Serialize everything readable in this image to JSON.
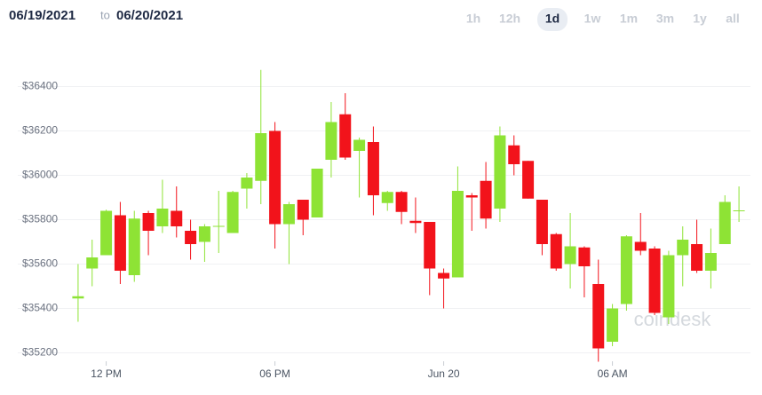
{
  "header": {
    "from": "06/19/2021",
    "to_word": "to",
    "to": "06/20/2021",
    "ranges": [
      "1h",
      "12h",
      "1d",
      "1w",
      "1m",
      "3m",
      "1y",
      "all"
    ],
    "selected_range": 2
  },
  "chart_data": {
    "type": "candlestick",
    "watermark": "coindesk",
    "categories": [
      null,
      null,
      "12 PM",
      null,
      null,
      null,
      null,
      null,
      null,
      null,
      null,
      null,
      null,
      null,
      "06 PM",
      null,
      null,
      null,
      null,
      null,
      null,
      null,
      null,
      null,
      null,
      null,
      "Jun 20",
      null,
      null,
      null,
      null,
      null,
      null,
      null,
      null,
      null,
      null,
      null,
      "06 AM",
      null,
      null,
      null,
      null,
      null,
      null,
      null,
      null,
      null
    ],
    "open": [
      35445,
      35580,
      35640,
      35820,
      35550,
      35830,
      35770,
      35840,
      35750,
      35700,
      35770,
      35740,
      35940,
      35975,
      36200,
      35780,
      35890,
      35810,
      36070,
      36275,
      36110,
      36150,
      35875,
      35925,
      35795,
      35790,
      35560,
      35540,
      35910,
      35975,
      35850,
      36135,
      36065,
      35890,
      35735,
      35600,
      35675,
      35510,
      35250,
      35420,
      35700,
      35670,
      35360,
      35640,
      35690,
      35570,
      35690,
      35840
    ],
    "high": [
      35600,
      35710,
      35845,
      35880,
      35840,
      35840,
      35980,
      35950,
      35800,
      35780,
      35930,
      35930,
      36010,
      36475,
      36240,
      35880,
      35890,
      36030,
      36330,
      36370,
      36170,
      36220,
      35930,
      35930,
      35900,
      35790,
      35580,
      36040,
      35920,
      36060,
      36220,
      36180,
      36065,
      35890,
      35740,
      35830,
      35680,
      35620,
      35420,
      35730,
      35830,
      35680,
      35660,
      35770,
      35800,
      35760,
      35910,
      35950
    ],
    "low": [
      35340,
      35500,
      35640,
      35510,
      35520,
      35640,
      35740,
      35720,
      35620,
      35610,
      35650,
      35740,
      35850,
      35870,
      35670,
      35600,
      35730,
      35810,
      35990,
      36070,
      35900,
      35820,
      35840,
      35780,
      35740,
      35460,
      35400,
      35540,
      35750,
      35760,
      35790,
      36000,
      35895,
      35640,
      35570,
      35490,
      35450,
      35160,
      35230,
      35390,
      35640,
      35370,
      35330,
      35500,
      35560,
      35490,
      35690,
      35790
    ],
    "close": [
      35455,
      35630,
      35840,
      35570,
      35805,
      35750,
      35850,
      35770,
      35690,
      35770,
      35772,
      35925,
      35990,
      36190,
      35780,
      35870,
      35800,
      36030,
      36240,
      36080,
      36160,
      35910,
      35925,
      35835,
      35785,
      35580,
      35535,
      35930,
      35900,
      35805,
      36180,
      36050,
      35895,
      35690,
      35580,
      35680,
      35590,
      35220,
      35400,
      35725,
      35660,
      35380,
      35640,
      35710,
      35570,
      35650,
      35880,
      35842
    ],
    "up_color": "#8ee335",
    "down_color": "#f2131b",
    "ylim": [
      35150,
      36550
    ],
    "yticks": [
      {
        "value": 35200,
        "label": "$35200"
      },
      {
        "value": 35400,
        "label": "$35400"
      },
      {
        "value": 35600,
        "label": "$35600"
      },
      {
        "value": 35800,
        "label": "$35800"
      },
      {
        "value": 36000,
        "label": "$36000"
      },
      {
        "value": 36200,
        "label": "$36200"
      },
      {
        "value": 36400,
        "label": "$36400"
      }
    ],
    "grid": true
  }
}
